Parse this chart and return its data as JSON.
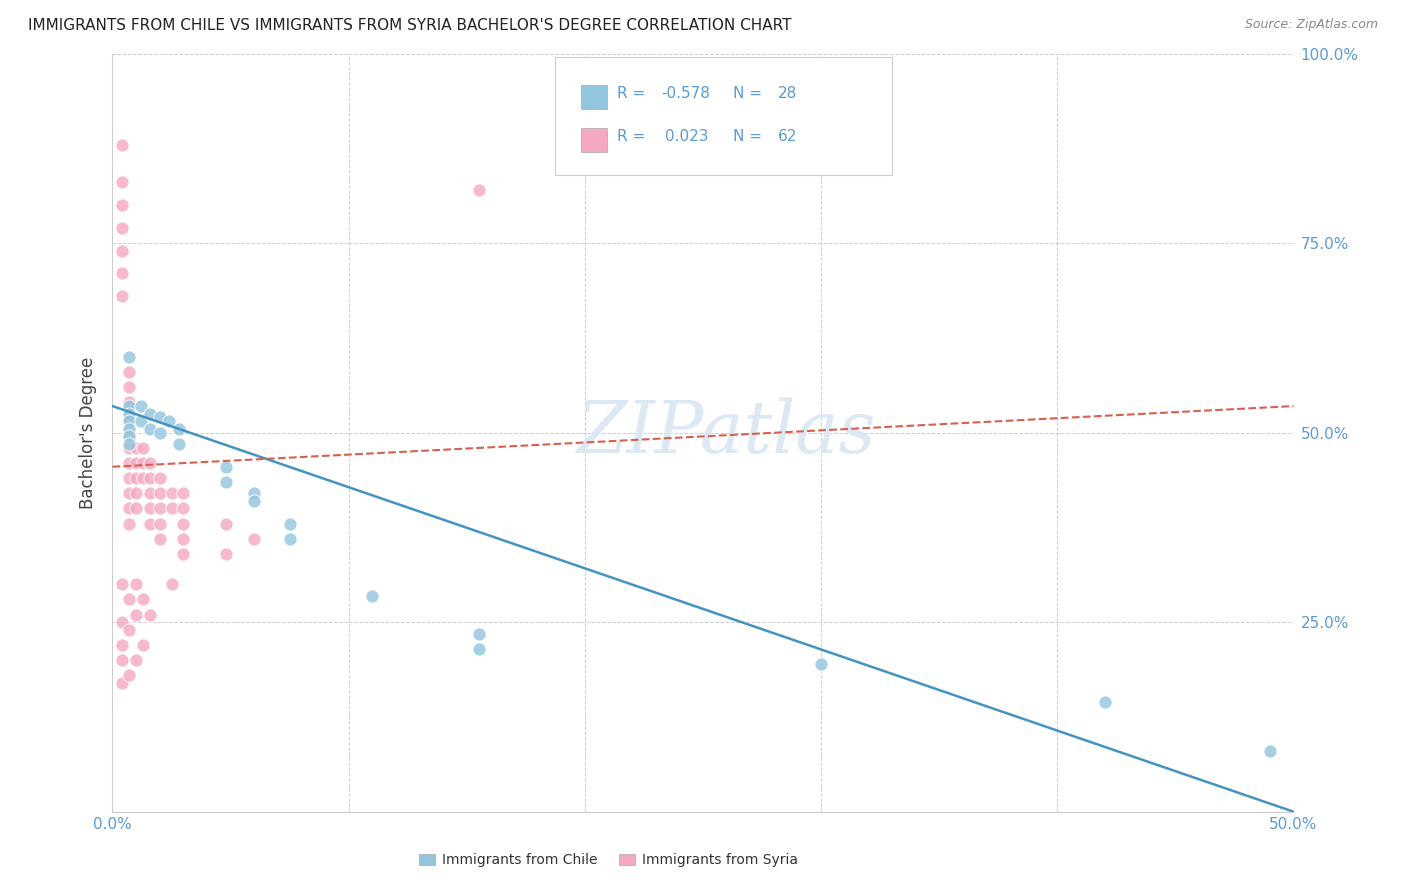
{
  "title": "IMMIGRANTS FROM CHILE VS IMMIGRANTS FROM SYRIA BACHELOR'S DEGREE CORRELATION CHART",
  "source": "Source: ZipAtlas.com",
  "ylabel_label": "Bachelor's Degree",
  "xlim": [
    0.0,
    0.5
  ],
  "ylim": [
    0.0,
    1.0
  ],
  "chile_color": "#92c5de",
  "syria_color": "#f4a9c0",
  "chile_line_color": "#4393c3",
  "syria_line_color": "#d6604d",
  "tick_color": "#5b9bd5",
  "chile_R": -0.578,
  "chile_N": 28,
  "syria_R": 0.023,
  "syria_N": 62,
  "watermark": "ZIPatlas",
  "chile_line": {
    "x0": 0.0,
    "y0": 0.535,
    "x1": 0.5,
    "y1": 0.0
  },
  "syria_line": {
    "x0": 0.0,
    "y0": 0.455,
    "x1": 0.5,
    "y1": 0.535
  },
  "chile_points": [
    [
      0.007,
      0.6
    ],
    [
      0.007,
      0.535
    ],
    [
      0.007,
      0.525
    ],
    [
      0.007,
      0.515
    ],
    [
      0.007,
      0.505
    ],
    [
      0.007,
      0.495
    ],
    [
      0.007,
      0.485
    ],
    [
      0.012,
      0.535
    ],
    [
      0.012,
      0.515
    ],
    [
      0.016,
      0.525
    ],
    [
      0.016,
      0.505
    ],
    [
      0.02,
      0.52
    ],
    [
      0.02,
      0.5
    ],
    [
      0.024,
      0.515
    ],
    [
      0.028,
      0.505
    ],
    [
      0.028,
      0.485
    ],
    [
      0.048,
      0.455
    ],
    [
      0.048,
      0.435
    ],
    [
      0.06,
      0.42
    ],
    [
      0.06,
      0.41
    ],
    [
      0.075,
      0.38
    ],
    [
      0.075,
      0.36
    ],
    [
      0.11,
      0.285
    ],
    [
      0.155,
      0.235
    ],
    [
      0.155,
      0.215
    ],
    [
      0.3,
      0.195
    ],
    [
      0.42,
      0.145
    ],
    [
      0.49,
      0.08
    ]
  ],
  "syria_points": [
    [
      0.004,
      0.88
    ],
    [
      0.004,
      0.83
    ],
    [
      0.004,
      0.8
    ],
    [
      0.004,
      0.77
    ],
    [
      0.004,
      0.74
    ],
    [
      0.004,
      0.71
    ],
    [
      0.004,
      0.68
    ],
    [
      0.007,
      0.58
    ],
    [
      0.007,
      0.56
    ],
    [
      0.007,
      0.54
    ],
    [
      0.007,
      0.52
    ],
    [
      0.007,
      0.5
    ],
    [
      0.007,
      0.48
    ],
    [
      0.007,
      0.46
    ],
    [
      0.007,
      0.44
    ],
    [
      0.007,
      0.42
    ],
    [
      0.007,
      0.4
    ],
    [
      0.007,
      0.38
    ],
    [
      0.01,
      0.48
    ],
    [
      0.01,
      0.46
    ],
    [
      0.01,
      0.44
    ],
    [
      0.01,
      0.42
    ],
    [
      0.01,
      0.4
    ],
    [
      0.013,
      0.48
    ],
    [
      0.013,
      0.46
    ],
    [
      0.013,
      0.44
    ],
    [
      0.016,
      0.46
    ],
    [
      0.016,
      0.44
    ],
    [
      0.016,
      0.42
    ],
    [
      0.016,
      0.4
    ],
    [
      0.016,
      0.38
    ],
    [
      0.02,
      0.44
    ],
    [
      0.02,
      0.42
    ],
    [
      0.02,
      0.4
    ],
    [
      0.02,
      0.38
    ],
    [
      0.02,
      0.36
    ],
    [
      0.025,
      0.42
    ],
    [
      0.025,
      0.4
    ],
    [
      0.03,
      0.42
    ],
    [
      0.03,
      0.4
    ],
    [
      0.03,
      0.38
    ],
    [
      0.03,
      0.36
    ],
    [
      0.004,
      0.3
    ],
    [
      0.004,
      0.25
    ],
    [
      0.004,
      0.22
    ],
    [
      0.007,
      0.28
    ],
    [
      0.007,
      0.24
    ],
    [
      0.01,
      0.3
    ],
    [
      0.01,
      0.26
    ],
    [
      0.013,
      0.28
    ],
    [
      0.016,
      0.26
    ],
    [
      0.048,
      0.38
    ],
    [
      0.06,
      0.36
    ],
    [
      0.155,
      0.82
    ],
    [
      0.004,
      0.2
    ],
    [
      0.004,
      0.17
    ],
    [
      0.007,
      0.18
    ],
    [
      0.01,
      0.2
    ],
    [
      0.013,
      0.22
    ],
    [
      0.025,
      0.3
    ],
    [
      0.03,
      0.34
    ],
    [
      0.048,
      0.34
    ]
  ]
}
